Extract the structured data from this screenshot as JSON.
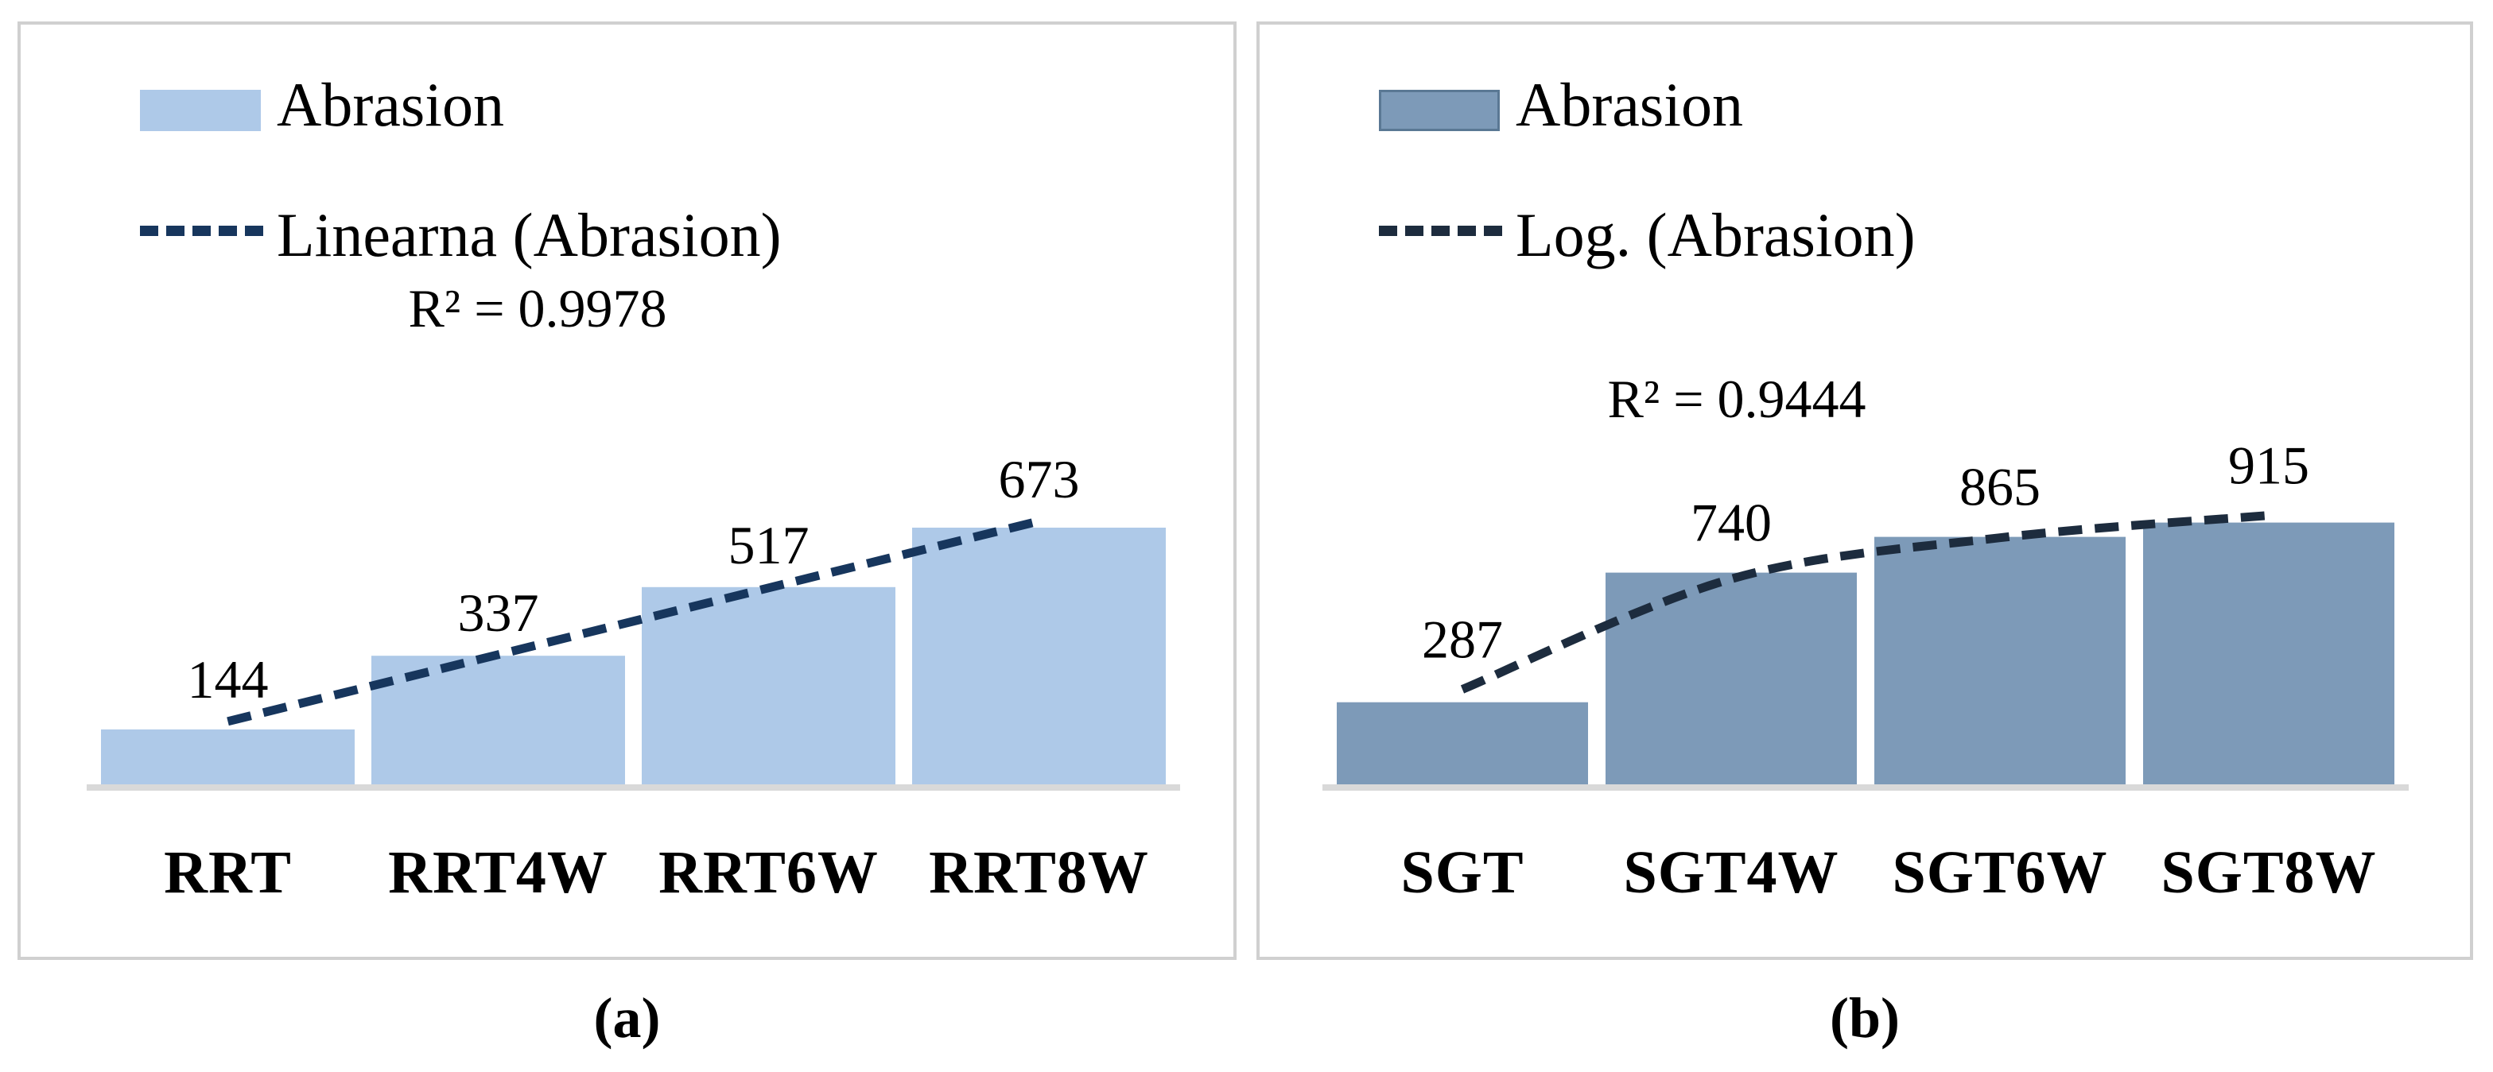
{
  "captions": {
    "a": "(a)",
    "b": "(b)"
  },
  "chart_data": [
    {
      "type": "bar",
      "title": "",
      "xlabel": "",
      "ylabel": "",
      "gridlines": false,
      "y_axis_visible": false,
      "legend_position": "top-left",
      "categories": [
        "RRT",
        "RRT4W",
        "RRT6W",
        "RRT8W"
      ],
      "values": [
        144,
        337,
        517,
        673
      ],
      "data_labels": [
        "144",
        "337",
        "517",
        "673"
      ],
      "legend_bar_label": "Abrasion",
      "legend_trend_label": "Linearna (Abrasion)",
      "r_squared": "R² = 0.9978",
      "trend": {
        "kind": "linear",
        "points": [
          165,
          340,
          515,
          690
        ]
      },
      "colors": {
        "bar": "#aec9e8",
        "trend": "#17365d",
        "axis": "#d9d9d9",
        "text": "#000000"
      }
    },
    {
      "type": "bar",
      "title": "",
      "xlabel": "",
      "ylabel": "",
      "gridlines": false,
      "y_axis_visible": false,
      "legend_position": "top-left",
      "categories": [
        "SGT",
        "SGT4W",
        "SGT6W",
        "SGT8W"
      ],
      "values": [
        287,
        740,
        865,
        915
      ],
      "data_labels": [
        "287",
        "740",
        "865",
        "915"
      ],
      "legend_bar_label": "Abrasion",
      "legend_trend_label": "Log. (Abrasion)",
      "r_squared": "R² = 0.9444",
      "trend": {
        "kind": "logarithmic",
        "points": [
          332,
          718,
          862,
          940
        ]
      },
      "colors": {
        "bar": "#7d9ab8",
        "trend": "#1d2c3e",
        "axis": "#d9d9d9",
        "text": "#000000",
        "swatch_border": "#5a7894"
      }
    }
  ]
}
